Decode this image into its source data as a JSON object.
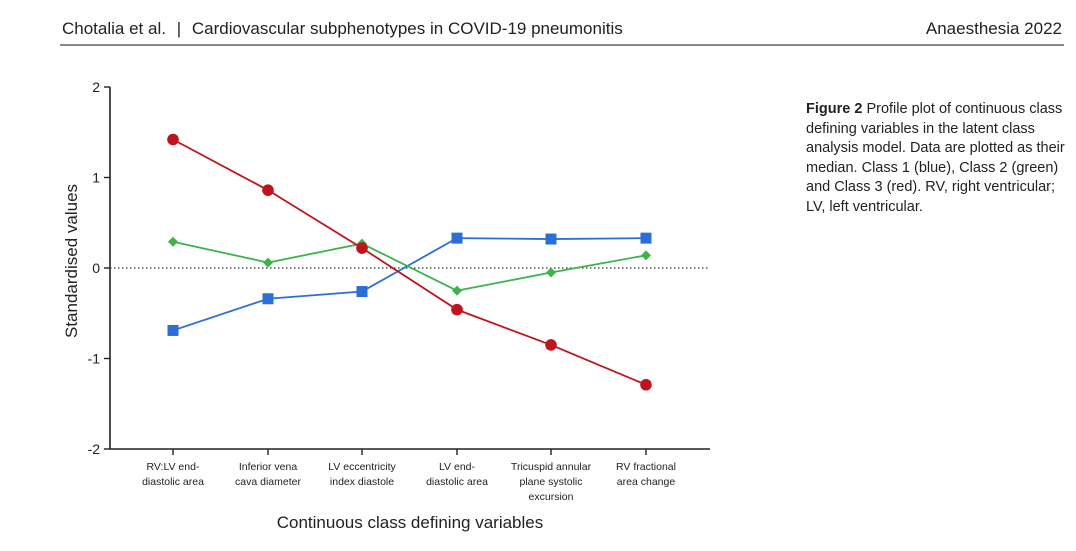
{
  "header": {
    "authors": "Chotalia et al.",
    "separator": "|",
    "article_title": "Cardiovascular subphenotypes in COVID-19 pneumonitis",
    "journal": "Anaesthesia 2022"
  },
  "caption": {
    "label": "Figure 2",
    "text": "Profile plot of continuous class defining variables in the latent class analysis model. Data are plotted as their median. Class 1 (blue), Class 2 (green) and Class 3 (red). RV, right ventricular; LV, left ventricular."
  },
  "chart_data": {
    "type": "line",
    "xlabel": "Continuous class defining variables",
    "ylabel": "Standardised values",
    "ylim": [
      -2,
      2
    ],
    "yticks": [
      2,
      1,
      0,
      -1,
      -2
    ],
    "ytick_labels": [
      "2",
      "1",
      "0",
      "-1",
      "-2"
    ],
    "reference_line": 0,
    "categories": [
      [
        "RV:LV end-",
        "diastolic area"
      ],
      [
        "Inferior vena",
        "cava diameter"
      ],
      [
        "LV eccentricity",
        "index diastole"
      ],
      [
        "LV end-",
        "diastolic area"
      ],
      [
        "Tricuspid annular",
        "plane systolic",
        "excursion"
      ],
      [
        "RV fractional",
        "area change"
      ]
    ],
    "series": [
      {
        "name": "Class 1",
        "color": "#2b6fd6",
        "marker": "square",
        "values": [
          -0.69,
          -0.34,
          -0.26,
          0.33,
          0.32,
          0.33
        ]
      },
      {
        "name": "Class 2",
        "color": "#3cb44b",
        "marker": "diamond",
        "values": [
          0.29,
          0.06,
          0.27,
          -0.25,
          -0.05,
          0.14
        ]
      },
      {
        "name": "Class 3",
        "color": "#c0141c",
        "marker": "circle",
        "values": [
          1.42,
          0.86,
          0.22,
          -0.46,
          -0.85,
          -1.29
        ]
      }
    ]
  }
}
